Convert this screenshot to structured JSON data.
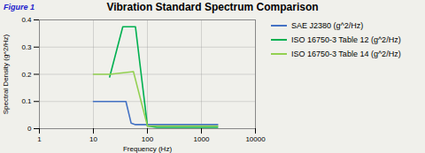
{
  "chart_data": {
    "type": "line",
    "title": "Vibration Standard Spectrum Comparison",
    "annotations": [
      "Figure 1"
    ],
    "xlabel": "Frequency (Hz)",
    "ylabel": "Spectral Density (g^2/Hz)",
    "log": "x",
    "xlim": [
      1,
      10000
    ],
    "xticks": [
      1,
      10,
      100,
      1000,
      10000
    ],
    "ylim": [
      0,
      0.4
    ],
    "yticks": [
      0,
      0.1,
      0.2,
      0.3,
      0.4
    ],
    "grid": true,
    "legend": "right",
    "series": [
      {
        "name": "SAE J2380 (g^2/Hz)",
        "color": "#4472C4",
        "x": [
          10,
          40,
          50,
          60,
          2000
        ],
        "values": [
          0.1,
          0.1,
          0.02,
          0.015,
          0.015
        ]
      },
      {
        "name": "ISO 16750-3 Table 12 (g^2/Hz)",
        "color": "#00B050",
        "x": [
          20,
          35,
          60,
          100,
          150,
          2000
        ],
        "values": [
          0.19,
          0.375,
          0.375,
          0.01,
          0.005,
          0.005
        ]
      },
      {
        "name": "ISO 16750-3 Table 14 (g^2/Hz)",
        "color": "#92D050",
        "x": [
          10,
          20,
          55,
          100,
          2000
        ],
        "values": [
          0.2,
          0.2,
          0.21,
          0.01,
          0.01
        ]
      }
    ]
  }
}
